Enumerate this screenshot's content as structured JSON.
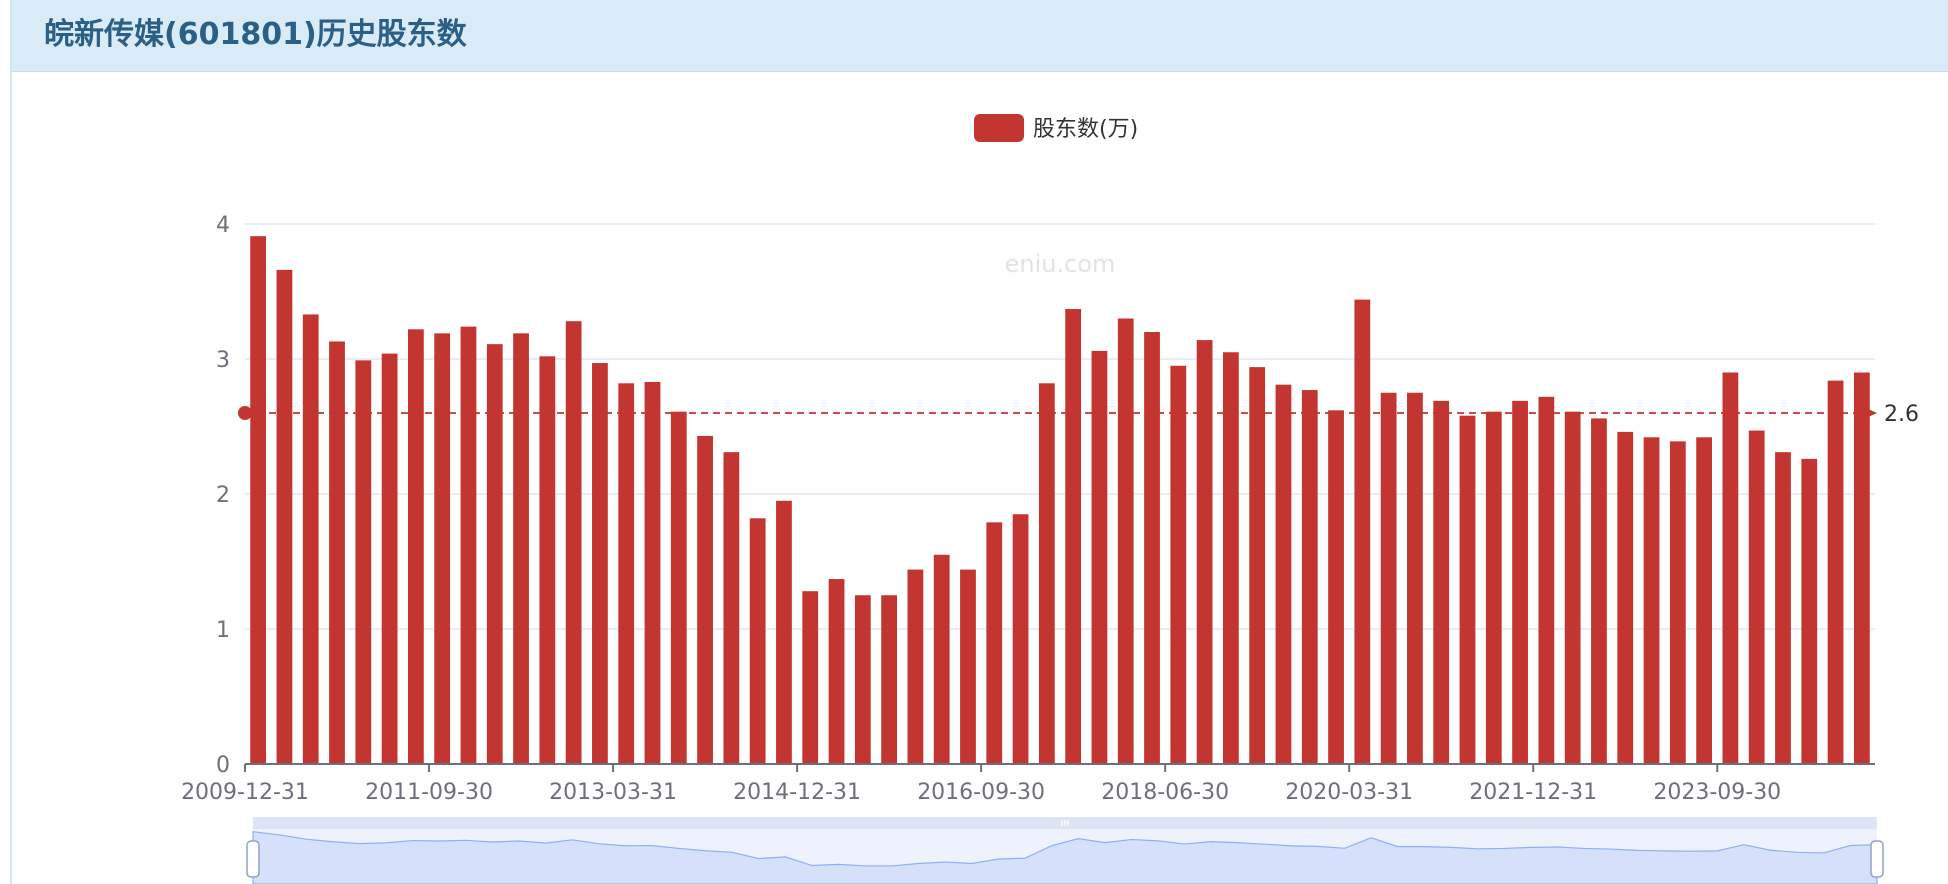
{
  "page": {
    "title": "皖新传媒(601801)历史股东数",
    "watermark": "eniu.com"
  },
  "colors": {
    "bar": "#c23531",
    "grid": "#e0e6f1",
    "axis": "#6e7079",
    "header_bg": "#d8ebf6",
    "zoom_fill": "#d5e0fb",
    "zoom_line": "#8fb0f7"
  },
  "chart_data": {
    "type": "bar",
    "legend": [
      "股东数(万)"
    ],
    "legend_position": "top-center",
    "ylim": [
      0,
      4
    ],
    "yticks": [
      0,
      1,
      2,
      3,
      4
    ],
    "y_tick_labels": [
      "0",
      "1",
      "2",
      "3",
      "4"
    ],
    "x_tick_labels": [
      "2009-12-31",
      "2011-09-30",
      "2013-03-31",
      "2014-12-31",
      "2016-09-30",
      "2018-06-30",
      "2020-03-31",
      "2021-12-31",
      "2023-09-30"
    ],
    "x_tick_indices": [
      0,
      7,
      14,
      21,
      28,
      35,
      42,
      49,
      56
    ],
    "grid": true,
    "mark_line": {
      "type": "average",
      "value": 2.6,
      "label": "2.6"
    },
    "series": [
      {
        "name": "股东数(万)",
        "values": [
          3.91,
          3.66,
          3.33,
          3.13,
          2.99,
          3.04,
          3.22,
          3.19,
          3.24,
          3.11,
          3.19,
          3.02,
          3.28,
          2.97,
          2.82,
          2.83,
          2.61,
          2.43,
          2.31,
          1.82,
          1.95,
          1.28,
          1.37,
          1.25,
          1.25,
          1.44,
          1.55,
          1.44,
          1.79,
          1.85,
          2.82,
          3.37,
          3.06,
          3.3,
          3.2,
          2.95,
          3.14,
          3.05,
          2.94,
          2.81,
          2.77,
          2.62,
          3.44,
          2.75,
          2.75,
          2.69,
          2.58,
          2.61,
          2.69,
          2.72,
          2.61,
          2.56,
          2.46,
          2.42,
          2.39,
          2.42,
          2.9,
          2.47,
          2.31,
          2.26,
          2.84,
          2.9
        ]
      }
    ],
    "data_zoom": {
      "start_percent": 0,
      "end_percent": 100
    }
  }
}
